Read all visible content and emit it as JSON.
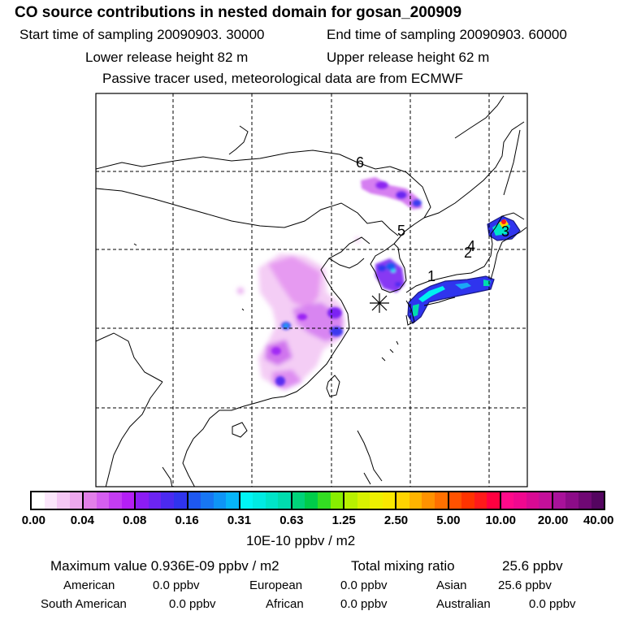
{
  "header": {
    "title": "CO  source contributions in nested domain for gosan_200909",
    "start_time": "Start time of sampling 20090903. 30000",
    "end_time": "End time of sampling 20090903. 60000",
    "lower_height": "Lower release height   82 m",
    "upper_height": "Upper release height   62 m",
    "tracer_note": "Passive tracer used, meteorological data are from ECMWF"
  },
  "map": {
    "region_labels": [
      "1",
      "2",
      "3",
      "4",
      "5",
      "6"
    ],
    "receptor_icon": "asterisk-marker"
  },
  "colorbar": {
    "ticks": [
      "0.00",
      "0.04",
      "0.08",
      "0.16",
      "0.31",
      "0.63",
      "1.25",
      "2.50",
      "5.00",
      "10.00",
      "20.00",
      "40.00"
    ],
    "unit": "10E-10 ppbv / m2",
    "colors": [
      [
        "#ffffff",
        "#fbe6fb",
        "#f5c8f5",
        "#eda8ee"
      ],
      [
        "#e27fe9",
        "#d55ef0",
        "#c43cf2",
        "#b41ff5"
      ],
      [
        "#8c1cf5",
        "#6c24f2",
        "#4b2af0",
        "#2f34ee"
      ],
      [
        "#1e58f0",
        "#1776f3",
        "#0e94f6",
        "#06b5f8"
      ],
      [
        "#00f5f5",
        "#00ebe2",
        "#00e4c8",
        "#00dcae"
      ],
      [
        "#00d27a",
        "#00cc4a",
        "#33dd22",
        "#88ee00"
      ],
      [
        "#b8f000",
        "#d8f200",
        "#eef000",
        "#f9e800"
      ],
      [
        "#ffd400",
        "#ffb400",
        "#ff9200",
        "#ff7000"
      ],
      [
        "#ff5200",
        "#ff3300",
        "#ff1a1a",
        "#ff0040"
      ],
      [
        "#ff0a8a",
        "#f0088f",
        "#d80a94",
        "#c4109a"
      ],
      [
        "#a8129a",
        "#8c0c88",
        "#700874",
        "#540560"
      ]
    ]
  },
  "stats": {
    "maximum": "Maximum value  0.936E-09 ppbv / m2",
    "total": "Total mixing ratio",
    "total_value": "25.6 ppbv",
    "regions": [
      {
        "name": "American",
        "value": "0.0 ppbv"
      },
      {
        "name": "European",
        "value": "0.0 ppbv"
      },
      {
        "name": "Asian",
        "value": "25.6 ppbv"
      },
      {
        "name": "South American",
        "value": "0.0 ppbv"
      },
      {
        "name": "African",
        "value": "0.0 ppbv"
      },
      {
        "name": "Australian",
        "value": "0.0 ppbv"
      }
    ]
  }
}
